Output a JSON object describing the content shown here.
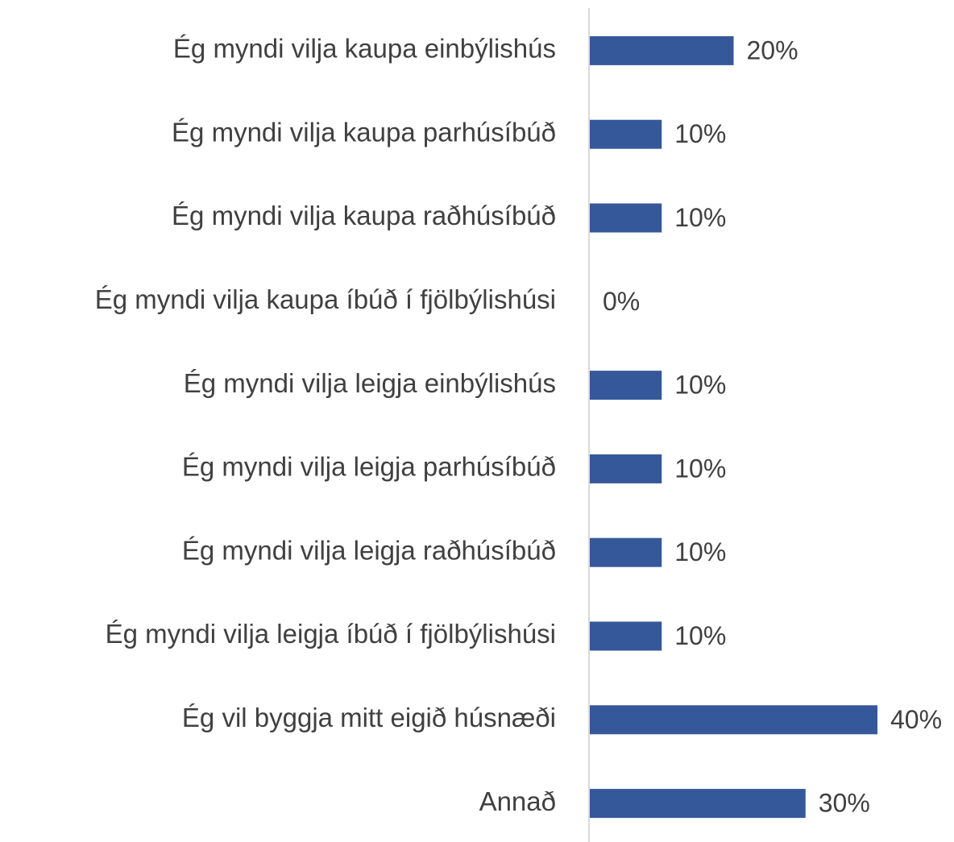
{
  "chart_data": {
    "type": "bar",
    "categories": [
      "Ég myndi vilja kaupa einbýlishús",
      "Ég myndi vilja kaupa parhúsíbúð",
      "Ég myndi vilja kaupa raðhúsíbúð",
      "Ég myndi vilja kaupa íbúð í fjölbýlishúsi",
      "Ég myndi vilja leigja einbýlishús",
      "Ég myndi vilja leigja parhúsíbúð",
      "Ég myndi vilja leigja raðhúsíbúð",
      "Ég myndi vilja leigja íbúð í fjölbýlishúsi",
      "Ég vil byggja mitt eigið húsnæði",
      "Annað"
    ],
    "values": [
      20,
      10,
      10,
      0,
      10,
      10,
      10,
      10,
      40,
      30
    ],
    "value_labels": [
      "20%",
      "10%",
      "10%",
      "0%",
      "10%",
      "10%",
      "10%",
      "10%",
      "40%",
      "30%"
    ],
    "color": "#35589a"
  }
}
